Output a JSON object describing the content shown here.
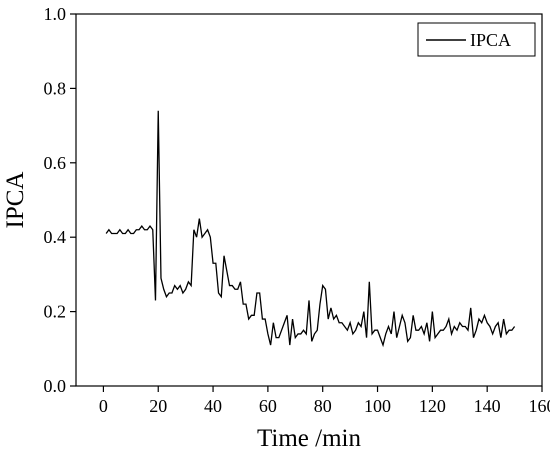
{
  "chart_data": {
    "type": "line",
    "title": "",
    "xlabel": "Time /min",
    "ylabel": "IPCA",
    "xlim": [
      -10,
      160
    ],
    "ylim": [
      0.0,
      1.0
    ],
    "xticks": [
      0,
      20,
      40,
      60,
      80,
      100,
      120,
      140,
      160
    ],
    "yticks": [
      0.0,
      0.2,
      0.4,
      0.6,
      0.8,
      1.0
    ],
    "xtick_labels": [
      "0",
      "20",
      "40",
      "60",
      "80",
      "100",
      "120",
      "140",
      "160"
    ],
    "ytick_labels": [
      "0.0",
      "0.2",
      "0.4",
      "0.6",
      "0.8",
      "1.0"
    ],
    "grid": false,
    "legend": {
      "position": "top-right",
      "entries": [
        "IPCA"
      ]
    },
    "series": [
      {
        "name": "IPCA",
        "color": "#000000",
        "x": [
          1,
          2,
          3,
          4,
          5,
          6,
          7,
          8,
          9,
          10,
          11,
          12,
          13,
          14,
          15,
          16,
          17,
          18,
          19,
          20,
          21,
          22,
          23,
          24,
          25,
          26,
          27,
          28,
          29,
          30,
          31,
          32,
          33,
          34,
          35,
          36,
          37,
          38,
          39,
          40,
          41,
          42,
          43,
          44,
          45,
          46,
          47,
          48,
          49,
          50,
          51,
          52,
          53,
          54,
          55,
          56,
          57,
          58,
          59,
          60,
          61,
          62,
          63,
          64,
          65,
          66,
          67,
          68,
          69,
          70,
          71,
          72,
          73,
          74,
          75,
          76,
          77,
          78,
          79,
          80,
          81,
          82,
          83,
          84,
          85,
          86,
          87,
          88,
          89,
          90,
          91,
          92,
          93,
          94,
          95,
          96,
          97,
          98,
          99,
          100,
          101,
          102,
          103,
          104,
          105,
          106,
          107,
          108,
          109,
          110,
          111,
          112,
          113,
          114,
          115,
          116,
          117,
          118,
          119,
          120,
          121,
          122,
          123,
          124,
          125,
          126,
          127,
          128,
          129,
          130,
          131,
          132,
          133,
          134,
          135,
          136,
          137,
          138,
          139,
          140,
          141,
          142,
          143,
          144,
          145,
          146,
          147,
          148,
          149,
          150
        ],
        "values": [
          0.41,
          0.42,
          0.41,
          0.41,
          0.41,
          0.42,
          0.41,
          0.41,
          0.42,
          0.41,
          0.41,
          0.42,
          0.42,
          0.43,
          0.42,
          0.42,
          0.43,
          0.42,
          0.23,
          0.74,
          0.29,
          0.26,
          0.24,
          0.25,
          0.25,
          0.27,
          0.26,
          0.27,
          0.25,
          0.26,
          0.28,
          0.27,
          0.42,
          0.4,
          0.45,
          0.4,
          0.41,
          0.42,
          0.4,
          0.33,
          0.33,
          0.25,
          0.24,
          0.35,
          0.31,
          0.27,
          0.27,
          0.26,
          0.26,
          0.28,
          0.22,
          0.22,
          0.18,
          0.19,
          0.19,
          0.25,
          0.25,
          0.18,
          0.18,
          0.14,
          0.11,
          0.17,
          0.13,
          0.13,
          0.15,
          0.17,
          0.19,
          0.11,
          0.18,
          0.13,
          0.14,
          0.14,
          0.15,
          0.14,
          0.23,
          0.12,
          0.14,
          0.15,
          0.22,
          0.27,
          0.26,
          0.18,
          0.21,
          0.18,
          0.19,
          0.17,
          0.17,
          0.16,
          0.15,
          0.17,
          0.14,
          0.15,
          0.17,
          0.16,
          0.2,
          0.13,
          0.28,
          0.14,
          0.15,
          0.15,
          0.13,
          0.11,
          0.14,
          0.16,
          0.14,
          0.2,
          0.13,
          0.16,
          0.19,
          0.17,
          0.12,
          0.13,
          0.19,
          0.15,
          0.15,
          0.16,
          0.14,
          0.17,
          0.12,
          0.2,
          0.13,
          0.14,
          0.15,
          0.15,
          0.16,
          0.18,
          0.14,
          0.16,
          0.15,
          0.17,
          0.16,
          0.16,
          0.15,
          0.21,
          0.13,
          0.15,
          0.18,
          0.17,
          0.19,
          0.17,
          0.16,
          0.14,
          0.16,
          0.17,
          0.13,
          0.18,
          0.14,
          0.15,
          0.15,
          0.16
        ]
      }
    ]
  }
}
